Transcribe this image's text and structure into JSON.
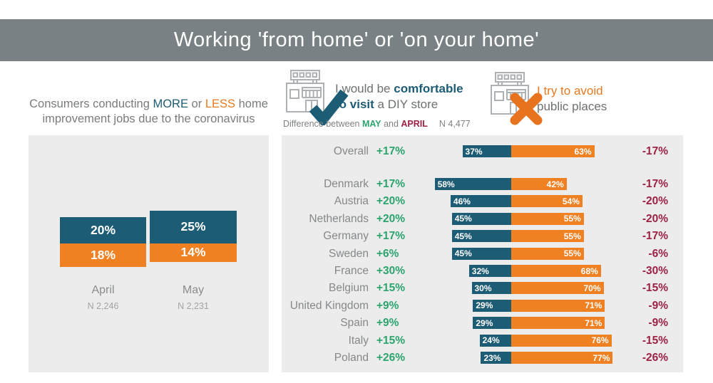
{
  "header": {
    "title": "Working 'from home' or 'on your home'"
  },
  "colors": {
    "teal": "#1d5c75",
    "orange": "#ef8122",
    "green": "#2ba46d",
    "dark_red": "#9c2143",
    "header_gray": "#7a8184",
    "panel_gray": "#ececec"
  },
  "left": {
    "title": {
      "p1": "Consumers conducting ",
      "more": "MORE",
      "p2": " or ",
      "less": "LESS",
      "p3": " home",
      "line2": "improvement jobs due to the coronavirus"
    }
  },
  "legends": {
    "comfortable": {
      "pre": "I would be ",
      "bold1": "comfortable",
      "bold2": "to visit",
      "post": " a DIY store",
      "icon": "diy-store-icon with check-icon"
    },
    "avoid": {
      "line1": "I try to avoid",
      "line2": "public places",
      "icon": "diy-store-icon with x-icon"
    }
  },
  "subtitle": {
    "pre": "Difference between ",
    "may": "MAY",
    "mid": " and ",
    "april": "APRIL",
    "n": "N 4,477"
  },
  "chart_data": [
    {
      "type": "bar",
      "title": "Consumers conducting MORE or LESS home improvement jobs due to the coronavirus",
      "orientation": "diverging-vertical",
      "categories": [
        "April",
        "May"
      ],
      "series": [
        {
          "name": "MORE home improvement (teal, above baseline)",
          "values": [
            20,
            25
          ]
        },
        {
          "name": "LESS home improvement (orange, below baseline)",
          "values": [
            18,
            14
          ]
        }
      ],
      "value_labels": [
        [
          "20%",
          "18%"
        ],
        [
          "25%",
          "14%"
        ]
      ],
      "sample_sizes": [
        "N 2,246",
        "N 2,231"
      ],
      "unit": "%",
      "legend_position": "none",
      "grid": false
    },
    {
      "type": "bar",
      "title": "I would be comfortable to visit a DIY store vs I try to avoid public places",
      "subtitle": "Difference between MAY and APRIL, N 4,477",
      "orientation": "diverging-horizontal",
      "categories": [
        "Overall",
        "Denmark",
        "Austria",
        "Netherlands",
        "Germany",
        "Sweden",
        "France",
        "Belgium",
        "United Kingdom",
        "Spain",
        "Italy",
        "Poland"
      ],
      "series": [
        {
          "name": "Comfortable to visit a DIY store (teal, left of center)",
          "values": [
            37,
            58,
            46,
            45,
            45,
            45,
            32,
            30,
            29,
            29,
            24,
            23
          ]
        },
        {
          "name": "Try to avoid public places (orange, right of center)",
          "values": [
            63,
            42,
            54,
            55,
            55,
            55,
            68,
            70,
            71,
            71,
            76,
            77
          ]
        }
      ],
      "bar_labels_teal": [
        "37%",
        "58%",
        "46%",
        "45%",
        "45%",
        "45%",
        "32%",
        "30%",
        "29%",
        "29%",
        "24%",
        "23%"
      ],
      "bar_labels_orange": [
        "63%",
        "42%",
        "54%",
        "55%",
        "55%",
        "55%",
        "68%",
        "70%",
        "71%",
        "71%",
        "76%",
        "77%"
      ],
      "diff_may_comfortable": [
        "+17%",
        "+17%",
        "+20%",
        "+20%",
        "+17%",
        "+6%",
        "+30%",
        "+15%",
        "+9%",
        "+9%",
        "+15%",
        "+26%"
      ],
      "diff_april_avoid": [
        "-17%",
        "-17%",
        "-20%",
        "-20%",
        "-17%",
        "-6%",
        "-30%",
        "-15%",
        "-9%",
        "-9%",
        "-15%",
        "-26%"
      ],
      "unit": "%",
      "grid": false
    }
  ]
}
